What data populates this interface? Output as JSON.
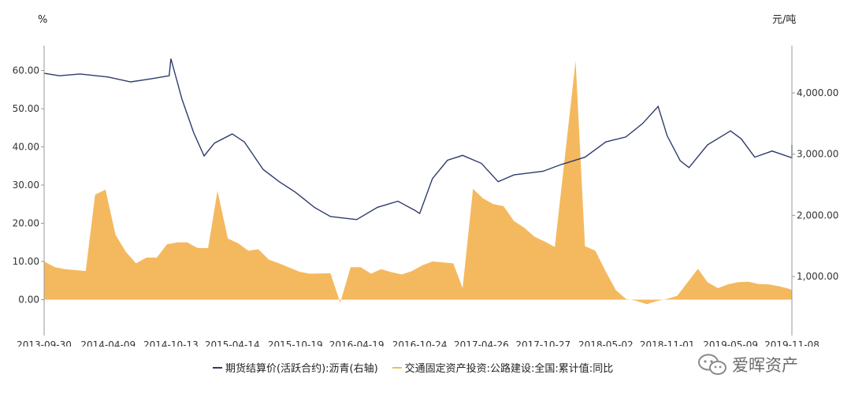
{
  "chart_data": {
    "type": "line+area",
    "left_axis_unit": "%",
    "right_axis_unit": "元/吨",
    "left_ticks": [
      "0.00",
      "10.00",
      "20.00",
      "30.00",
      "40.00",
      "50.00",
      "60.00"
    ],
    "right_ticks": [
      "1,000.00",
      "2,000.00",
      "3,000.00",
      "4,000.00"
    ],
    "x_ticks": [
      "2013-09-30",
      "2014-04-09",
      "2014-10-13",
      "2015-04-14",
      "2015-10-19",
      "2016-04-19",
      "2016-10-24",
      "2017-04-26",
      "2017-10-27",
      "2018-05-02",
      "2018-11-01",
      "2019-05-09",
      "2019-11-08"
    ],
    "ylim_left": [
      -7,
      69
    ],
    "ylim_right": [
      0,
      5000
    ],
    "grid": false,
    "legend_position": "bottom",
    "series": [
      {
        "name": "期货结算价(活跃合约):沥青(右轴)",
        "axis": "right",
        "type": "line",
        "color": "#2e3a6e",
        "x": [
          "2013-09-30",
          "2013-11-15",
          "2014-01-15",
          "2014-04-09",
          "2014-06-15",
          "2014-08-15",
          "2014-10-08",
          "2014-10-13",
          "2014-11-15",
          "2014-12-20",
          "2015-01-20",
          "2015-02-20",
          "2015-04-14",
          "2015-05-20",
          "2015-07-15",
          "2015-09-01",
          "2015-10-19",
          "2015-12-15",
          "2016-02-01",
          "2016-04-19",
          "2016-06-20",
          "2016-08-20",
          "2016-10-10",
          "2016-10-24",
          "2016-12-01",
          "2017-01-15",
          "2017-03-01",
          "2017-04-26",
          "2017-06-15",
          "2017-08-01",
          "2017-10-27",
          "2017-12-20",
          "2018-03-01",
          "2018-05-02",
          "2018-07-01",
          "2018-08-20",
          "2018-10-05",
          "2018-11-01",
          "2018-12-10",
          "2019-01-05",
          "2019-03-01",
          "2019-05-09",
          "2019-06-10",
          "2019-07-20",
          "2019-09-10",
          "2019-11-08",
          "2019-12-15"
        ],
        "y": [
          4320,
          4280,
          4310,
          4260,
          4180,
          4230,
          4280,
          4560,
          3900,
          3350,
          2970,
          3180,
          3330,
          3200,
          2750,
          2550,
          2380,
          2130,
          1980,
          1930,
          2130,
          2230,
          2080,
          2030,
          2600,
          2900,
          2980,
          2850,
          2550,
          2660,
          2720,
          2830,
          2950,
          3200,
          3280,
          3500,
          3780,
          3300,
          2890,
          2780,
          3150,
          3380,
          3250,
          2950,
          3050,
          2940,
          3150
        ]
      },
      {
        "name": "交通固定资产投资:公路建设:全国:累计值:同比",
        "axis": "left",
        "type": "area",
        "color": "#f4b95f",
        "x": [
          "2013-09-30",
          "2013-11-01",
          "2013-12-01",
          "2014-02-01",
          "2014-03-01",
          "2014-04-01",
          "2014-05-01",
          "2014-06-01",
          "2014-07-01",
          "2014-08-01",
          "2014-09-01",
          "2014-10-01",
          "2014-11-01",
          "2014-12-01",
          "2015-01-01",
          "2015-02-01",
          "2015-03-01",
          "2015-04-01",
          "2015-05-01",
          "2015-06-01",
          "2015-07-01",
          "2015-08-01",
          "2015-09-01",
          "2015-10-01",
          "2015-11-01",
          "2015-12-01",
          "2016-02-01",
          "2016-03-01",
          "2016-04-01",
          "2016-05-01",
          "2016-06-01",
          "2016-07-01",
          "2016-08-01",
          "2016-09-01",
          "2016-10-01",
          "2016-11-01",
          "2016-12-01",
          "2017-02-01",
          "2017-03-01",
          "2017-04-01",
          "2017-05-01",
          "2017-06-01",
          "2017-07-01",
          "2017-08-01",
          "2017-09-01",
          "2017-10-01",
          "2017-11-01",
          "2017-12-01",
          "2018-02-01",
          "2018-03-01",
          "2018-04-01",
          "2018-05-01",
          "2018-06-01",
          "2018-07-01",
          "2018-08-01",
          "2018-09-01",
          "2018-10-01",
          "2018-11-01",
          "2018-12-01",
          "2019-02-01",
          "2019-03-01",
          "2019-04-01",
          "2019-05-01",
          "2019-06-01",
          "2019-07-01",
          "2019-08-01",
          "2019-09-01",
          "2019-10-01",
          "2019-11-01",
          "2019-12-01"
        ],
        "y": [
          10,
          8.5,
          8,
          7.5,
          27.5,
          28.8,
          17,
          12.5,
          9.5,
          11,
          11,
          14.5,
          15,
          15,
          13.5,
          13.5,
          28.5,
          16,
          14.8,
          12.8,
          13.2,
          10.5,
          9.5,
          8.4,
          7.3,
          6.8,
          6.9,
          -0.8,
          8.5,
          8.5,
          6.8,
          8,
          7.2,
          6.6,
          7.5,
          9,
          10,
          9.5,
          3,
          29,
          26.5,
          25,
          24.5,
          20.6,
          18.8,
          16.5,
          15.2,
          13.8,
          62.5,
          14,
          12.8,
          7.5,
          2.5,
          0.2,
          -0.3,
          -1.2,
          -0.4,
          0.2,
          1,
          8.1,
          4.6,
          3,
          4,
          4.6,
          4.7,
          4.1,
          4,
          3.5,
          2.8,
          2.5
        ]
      }
    ]
  },
  "legend": {
    "line_label": "期货结算价(活跃合约):沥青(右轴)",
    "area_label": "交通固定资产投资:公路建设:全国:累计值:同比"
  },
  "watermark": {
    "text": "爱晖资产",
    "icon": "wechat-icon"
  }
}
